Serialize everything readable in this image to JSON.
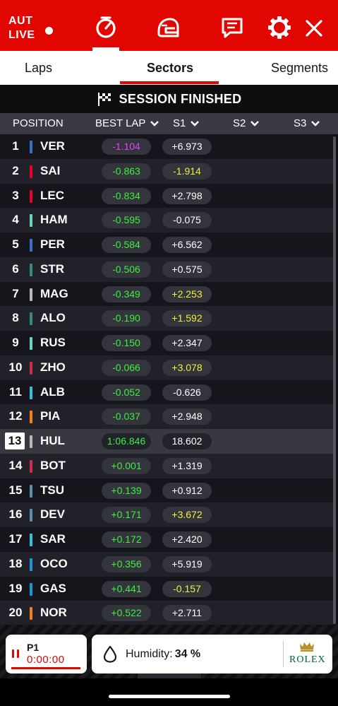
{
  "header": {
    "region": "AUT",
    "live": "LIVE",
    "icons": [
      "timer-icon",
      "helmet-icon",
      "chat-icon",
      "gear-icon",
      "close-icon"
    ]
  },
  "tabs": [
    "Laps",
    "Sectors",
    "Segments"
  ],
  "active_tab": "Sectors",
  "banner": {
    "text": "SESSION FINISHED"
  },
  "columns": [
    "POSITION",
    "BEST LAP",
    "S1",
    "S2",
    "S3"
  ],
  "colors": {
    "accent": "#e10600",
    "purple": "#e040fb",
    "green": "#3df03d",
    "yellow": "#f3ef3b",
    "white": "#ffffff"
  },
  "drivers": [
    {
      "pos": "1",
      "code": "VER",
      "team_color": "#3671c6",
      "best": "-1.104",
      "best_color": "purple",
      "s1": "+6.973",
      "s1_color": "white"
    },
    {
      "pos": "2",
      "code": "SAI",
      "team_color": "#e8002d",
      "best": "-0.863",
      "best_color": "green",
      "s1": "-1.914",
      "s1_color": "yellow"
    },
    {
      "pos": "3",
      "code": "LEC",
      "team_color": "#e8002d",
      "best": "-0.834",
      "best_color": "green",
      "s1": "+2.798",
      "s1_color": "white"
    },
    {
      "pos": "4",
      "code": "HAM",
      "team_color": "#6cd3bf",
      "best": "-0.595",
      "best_color": "green",
      "s1": "-0.075",
      "s1_color": "white"
    },
    {
      "pos": "5",
      "code": "PER",
      "team_color": "#3671c6",
      "best": "-0.584",
      "best_color": "green",
      "s1": "+6.562",
      "s1_color": "white"
    },
    {
      "pos": "6",
      "code": "STR",
      "team_color": "#358c75",
      "best": "-0.506",
      "best_color": "green",
      "s1": "+0.575",
      "s1_color": "white"
    },
    {
      "pos": "7",
      "code": "MAG",
      "team_color": "#b6babd",
      "best": "-0.349",
      "best_color": "green",
      "s1": "+2.253",
      "s1_color": "yellow"
    },
    {
      "pos": "8",
      "code": "ALO",
      "team_color": "#358c75",
      "best": "-0.190",
      "best_color": "green",
      "s1": "+1.592",
      "s1_color": "yellow"
    },
    {
      "pos": "9",
      "code": "RUS",
      "team_color": "#6cd3bf",
      "best": "-0.150",
      "best_color": "green",
      "s1": "+2.347",
      "s1_color": "white"
    },
    {
      "pos": "10",
      "code": "ZHO",
      "team_color": "#c92d4b",
      "best": "-0.066",
      "best_color": "green",
      "s1": "+3.078",
      "s1_color": "yellow"
    },
    {
      "pos": "11",
      "code": "ALB",
      "team_color": "#37bedd",
      "best": "-0.052",
      "best_color": "green",
      "s1": "-0.626",
      "s1_color": "white"
    },
    {
      "pos": "12",
      "code": "PIA",
      "team_color": "#f58020",
      "best": "-0.037",
      "best_color": "green",
      "s1": "+2.948",
      "s1_color": "white"
    },
    {
      "pos": "13",
      "code": "HUL",
      "team_color": "#b6babd",
      "best": "1:06.846",
      "best_color": "green",
      "s1": "18.602",
      "s1_color": "white"
    },
    {
      "pos": "14",
      "code": "BOT",
      "team_color": "#c92d4b",
      "best": "+0.001",
      "best_color": "green",
      "s1": "+1.319",
      "s1_color": "white"
    },
    {
      "pos": "15",
      "code": "TSU",
      "team_color": "#5e8faa",
      "best": "+0.139",
      "best_color": "green",
      "s1": "+0.912",
      "s1_color": "white"
    },
    {
      "pos": "16",
      "code": "DEV",
      "team_color": "#5e8faa",
      "best": "+0.171",
      "best_color": "green",
      "s1": "+3.672",
      "s1_color": "yellow"
    },
    {
      "pos": "17",
      "code": "SAR",
      "team_color": "#37bedd",
      "best": "+0.172",
      "best_color": "green",
      "s1": "+2.420",
      "s1_color": "white"
    },
    {
      "pos": "18",
      "code": "OCO",
      "team_color": "#2293d1",
      "best": "+0.356",
      "best_color": "green",
      "s1": "+5.919",
      "s1_color": "white"
    },
    {
      "pos": "19",
      "code": "GAS",
      "team_color": "#2293d1",
      "best": "+0.441",
      "best_color": "green",
      "s1": "-0.157",
      "s1_color": "yellow"
    },
    {
      "pos": "20",
      "code": "NOR",
      "team_color": "#f58020",
      "best": "+0.522",
      "best_color": "green",
      "s1": "+2.711",
      "s1_color": "white"
    }
  ],
  "highlight_pos": "13",
  "footer": {
    "p1_label": "P1",
    "p1_time": "0:00:00",
    "humidity_label": "Humidity:",
    "humidity_value": "34 %",
    "sponsor": "ROLEX"
  }
}
